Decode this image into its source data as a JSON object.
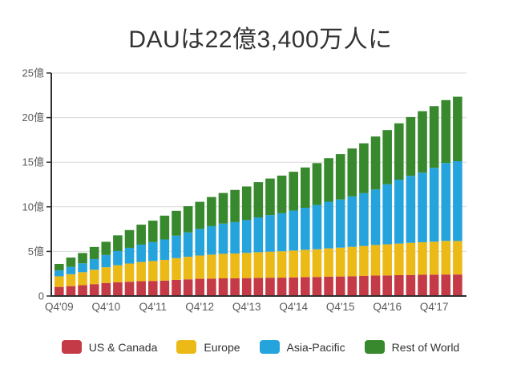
{
  "title": "DAUは22億3,400万人に",
  "colors": {
    "background": "#ffffff",
    "title_text": "#333333",
    "grid": "#d9d9d9",
    "axis": "#2f2f2f",
    "axis_label": "#5a5a5a",
    "legend_text": "#333333",
    "us_canada": "#c43a46",
    "europe": "#ecba16",
    "asia_pacific": "#25a3dd",
    "rest_of_world": "#38892e"
  },
  "chart_data": {
    "type": "bar",
    "stacked": true,
    "title": "DAUは22億3,400万人に",
    "values_unit": "millions of users",
    "grid": true,
    "legend_position": "bottom",
    "y_max_millions": 2500,
    "y_axis_tick_labels": [
      "0",
      "5億",
      "10億",
      "15億",
      "20億",
      "25億"
    ],
    "x_axis_tick_labels": [
      "Q4'09",
      "Q4'10",
      "Q4'11",
      "Q4'12",
      "Q4'13",
      "Q4'14",
      "Q4'15",
      "Q4'16",
      "Q4'17"
    ],
    "x_label_every": 4,
    "x": [
      "Q4'09",
      "Q1'10",
      "Q2'10",
      "Q3'10",
      "Q4'10",
      "Q1'11",
      "Q2'11",
      "Q3'11",
      "Q4'11",
      "Q1'12",
      "Q2'12",
      "Q3'12",
      "Q4'12",
      "Q1'13",
      "Q2'13",
      "Q3'13",
      "Q4'13",
      "Q1'14",
      "Q2'14",
      "Q3'14",
      "Q4'14",
      "Q1'15",
      "Q2'15",
      "Q3'15",
      "Q4'15",
      "Q1'16",
      "Q2'16",
      "Q3'16",
      "Q4'16",
      "Q1'17",
      "Q2'17",
      "Q3'17",
      "Q4'17",
      "Q1'18",
      "Q2'18"
    ],
    "series": [
      {
        "name": "US & Canada",
        "color": "#c43a46",
        "values": [
          102,
          111,
          121,
          133,
          146,
          154,
          160,
          166,
          169,
          173,
          181,
          187,
          193,
          195,
          198,
          199,
          201,
          203,
          205,
          206,
          208,
          211,
          213,
          217,
          219,
          222,
          225,
          229,
          231,
          234,
          236,
          239,
          239,
          241,
          241
        ]
      },
      {
        "name": "Europe",
        "color": "#ecba16",
        "values": [
          119,
          133,
          146,
          161,
          176,
          191,
          204,
          215,
          223,
          232,
          244,
          253,
          261,
          269,
          275,
          278,
          282,
          288,
          292,
          296,
          301,
          307,
          311,
          317,
          323,
          329,
          336,
          343,
          349,
          354,
          360,
          364,
          370,
          377,
          376
        ]
      },
      {
        "name": "Asia-Pacific",
        "color": "#25a3dd",
        "values": [
          65,
          82,
          99,
          120,
          138,
          159,
          176,
          195,
          212,
          229,
          251,
          273,
          298,
          319,
          339,
          351,
          368,
          390,
          410,
          426,
          449,
          471,
          496,
          523,
          540,
          566,
          592,
          622,
          673,
          716,
          751,
          780,
          828,
          873,
          894
        ]
      },
      {
        "name": "Rest of World",
        "color": "#38892e",
        "values": [
          74,
          105,
          116,
          136,
          148,
          176,
          199,
          224,
          241,
          267,
          279,
          294,
          304,
          327,
          343,
          361,
          377,
          395,
          410,
          422,
          435,
          452,
          470,
          488,
          509,
          537,
          559,
          594,
          607,
          632,
          659,
          689,
          692,
          705,
          723
        ]
      }
    ],
    "totals_note": "last bar total 2,234M = 22億3,400万"
  }
}
